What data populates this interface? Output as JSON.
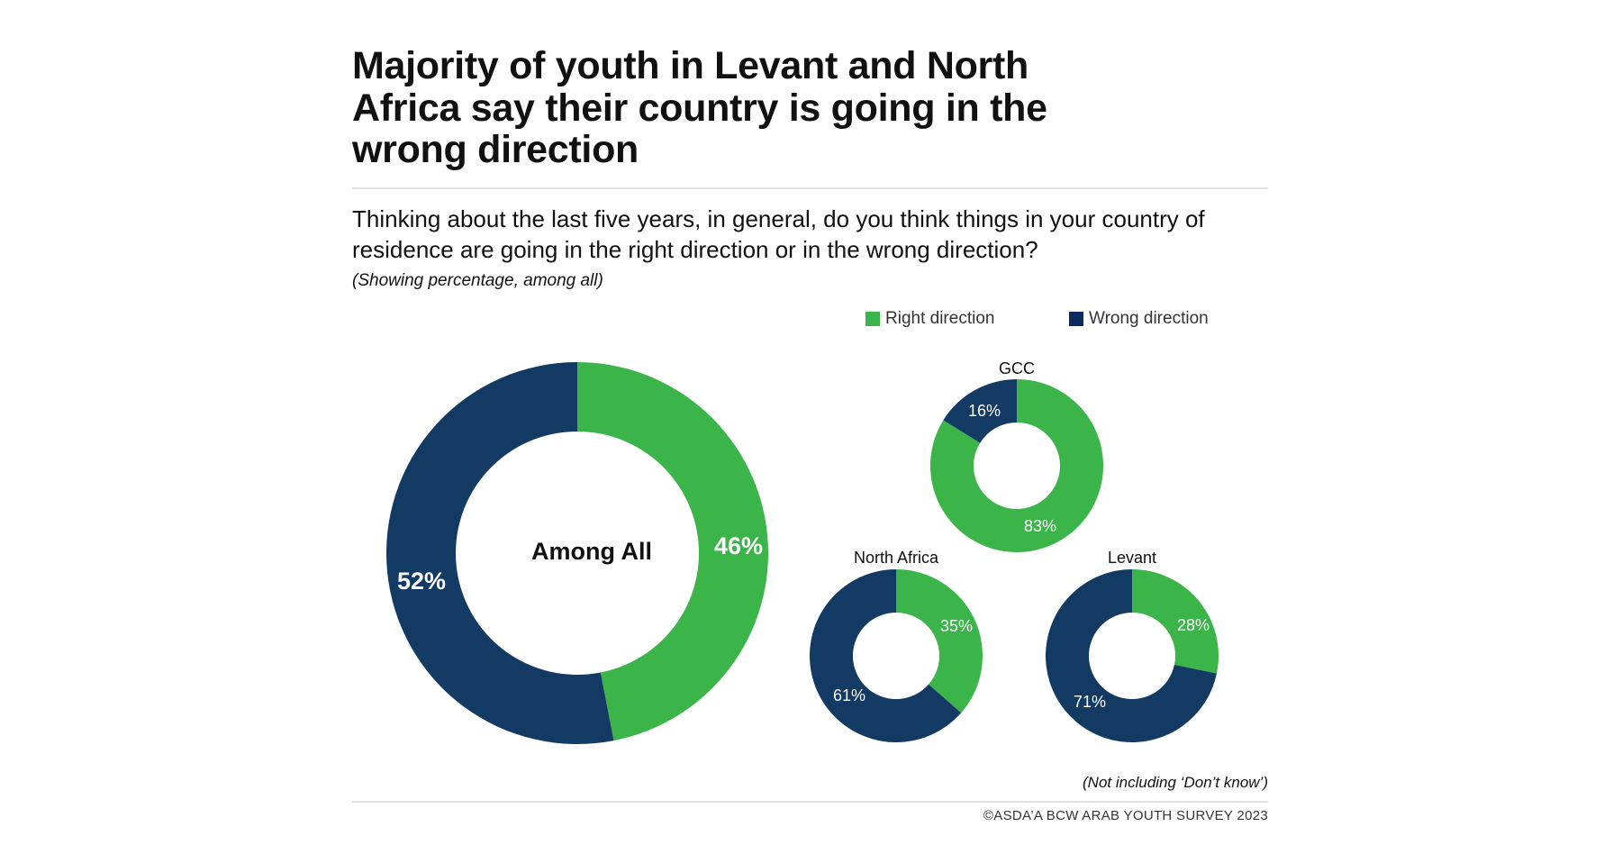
{
  "chart_data": {
    "type": "pie",
    "title": "Majority of youth in Levant and North Africa say their country is going in the wrong direction",
    "subtitle": "Thinking about the last five years, in general, do you think things in your country of residence are going in the right direction or in the wrong direction?",
    "note": "(Showing percentage, among all)",
    "footnote": "(Not including ‘Don’t know’)",
    "legend": {
      "position": "top-right",
      "entries": [
        "Right direction",
        "Wrong direction"
      ]
    },
    "colors": {
      "right": "#3bb54a",
      "wrong": "#123a63",
      "legend_wrong": "#0c2a60"
    },
    "donuts": [
      {
        "name": "Among All",
        "label_inside": true,
        "right": 46,
        "wrong": 52,
        "right_label": "46%",
        "wrong_label": "52%"
      },
      {
        "name": "GCC",
        "right": 83,
        "wrong": 16,
        "right_label": "83%",
        "wrong_label": "16%"
      },
      {
        "name": "North Africa",
        "right": 35,
        "wrong": 61,
        "right_label": "35%",
        "wrong_label": "61%"
      },
      {
        "name": "Levant",
        "right": 28,
        "wrong": 71,
        "right_label": "28%",
        "wrong_label": "71%"
      }
    ]
  },
  "source": "©ASDA’A BCW ARAB YOUTH SURVEY 2023"
}
